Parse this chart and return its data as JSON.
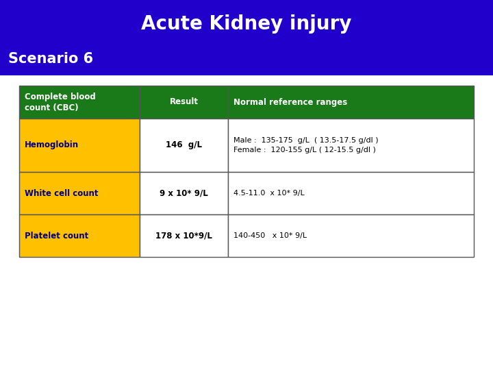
{
  "title": "Acute Kidney injury",
  "scenario": "Scenario 6",
  "header_bg": "#2200CC",
  "title_color": "#FFFFFF",
  "scenario_color": "#FFFFFF",
  "table_header_bg": "#1A7A1A",
  "table_header_text_color": "#FFFFFF",
  "row_left_bg": "#FFC000",
  "row_left_text_color": "#000080",
  "row_right_bg": "#FFFFFF",
  "row_right_text_color": "#000000",
  "table_border_color": "#555555",
  "col1_header": "Complete blood\ncount (CBC)",
  "col2_header": "Result",
  "col3_header": "Normal reference ranges",
  "rows": [
    {
      "col1": "Hemoglobin",
      "col2": "146  g/L",
      "col3": "Male :  135-175  g/L  ( 13.5-17.5 g/dl )\nFemale :  120-155 g/L ( 12-15.5 g/dl )"
    },
    {
      "col1": "White cell count",
      "col2": "9 x 10* 9/L",
      "col3": "4.5-11.0  x 10* 9/L"
    },
    {
      "col1": "Platelet count",
      "col2": "178 x 10*9/L",
      "col3": "140-450   x 10* 9/L"
    }
  ]
}
